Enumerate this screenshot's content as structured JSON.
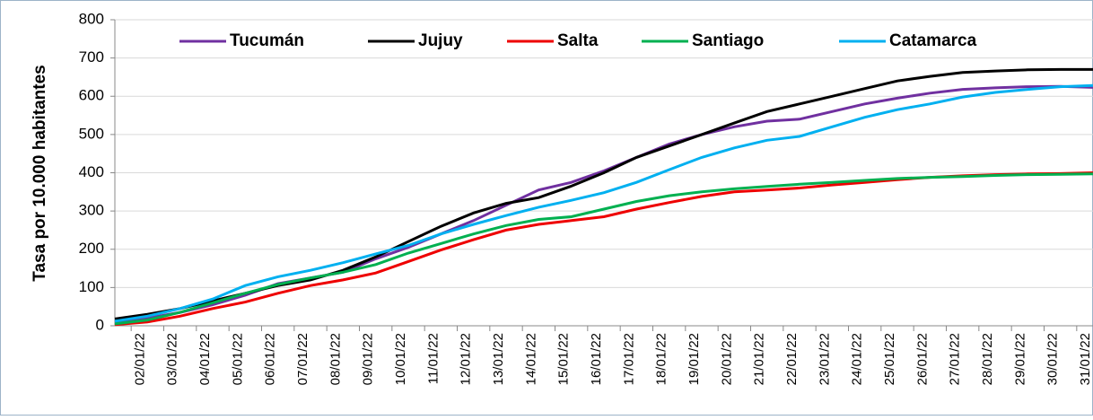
{
  "chart_data": {
    "type": "line",
    "y_label": "Tasa por 10.000 habitantes",
    "categories": [
      null,
      "02/01/22",
      "03/01/22",
      "04/01/22",
      "05/01/22",
      "06/01/22",
      "07/01/22",
      "08/01/22",
      "09/01/22",
      "10/01/22",
      "11/01/22",
      "12/01/22",
      "13/01/22",
      "14/01/22",
      "15/01/22",
      "16/01/22",
      "17/01/22",
      "18/01/22",
      "19/01/22",
      "20/01/22",
      "21/01/22",
      "22/01/22",
      "23/01/22",
      "24/01/22",
      "25/01/22",
      "26/01/22",
      "27/01/22",
      "28/01/22",
      "29/01/22",
      "30/01/22",
      "31/01/22"
    ],
    "series": [
      {
        "name": "Tucumán",
        "color": "#7030a0",
        "values": [
          10,
          20,
          35,
          55,
          80,
          110,
          125,
          140,
          175,
          205,
          240,
          275,
          315,
          355,
          375,
          405,
          440,
          475,
          500,
          520,
          535,
          540,
          560,
          580,
          595,
          608,
          618,
          622,
          625,
          626,
          623
        ]
      },
      {
        "name": "Jujuy",
        "color": "#000000",
        "values": [
          18,
          30,
          45,
          65,
          85,
          105,
          120,
          145,
          180,
          220,
          260,
          295,
          320,
          335,
          365,
          400,
          440,
          470,
          500,
          530,
          560,
          580,
          600,
          620,
          640,
          652,
          662,
          666,
          669,
          670,
          670
        ]
      },
      {
        "name": "Salta",
        "color": "#ee0000",
        "values": [
          3,
          10,
          25,
          45,
          62,
          85,
          105,
          120,
          138,
          168,
          198,
          225,
          250,
          265,
          275,
          285,
          305,
          322,
          338,
          350,
          355,
          360,
          368,
          375,
          382,
          388,
          392,
          395,
          397,
          398,
          400
        ]
      },
      {
        "name": "Santiago",
        "color": "#00b050",
        "values": [
          5,
          15,
          35,
          60,
          85,
          108,
          125,
          140,
          160,
          190,
          215,
          240,
          262,
          278,
          285,
          305,
          325,
          340,
          350,
          358,
          364,
          370,
          375,
          380,
          385,
          388,
          390,
          393,
          395,
          396,
          397
        ]
      },
      {
        "name": "Catamarca",
        "color": "#00b0f0",
        "values": [
          12,
          25,
          45,
          70,
          105,
          128,
          145,
          165,
          188,
          210,
          240,
          265,
          288,
          310,
          328,
          348,
          375,
          408,
          440,
          465,
          485,
          495,
          520,
          545,
          565,
          580,
          598,
          610,
          618,
          625,
          628
        ]
      }
    ],
    "ylim": [
      0,
      800
    ],
    "yticks": [
      0,
      100,
      200,
      300,
      400,
      500,
      600,
      700,
      800
    ],
    "grid": true,
    "legend": "top"
  }
}
